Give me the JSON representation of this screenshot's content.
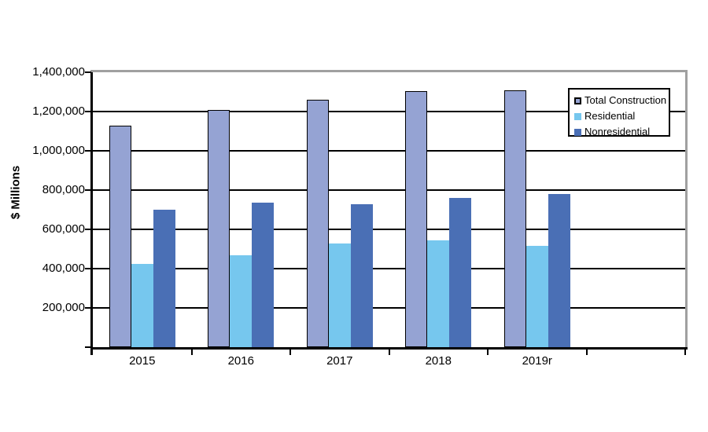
{
  "chart_data": {
    "type": "bar",
    "title": "",
    "ylabel": "$ Millions",
    "xlabel": "",
    "categories": [
      "2015",
      "2016",
      "2017",
      "2018",
      "2019r"
    ],
    "series": [
      {
        "name": "Total Construction",
        "color": "#95A3D3",
        "border_color": "#000000",
        "values": [
          1130000,
          1210000,
          1260000,
          1305000,
          1310000
        ]
      },
      {
        "name": "Residential",
        "color": "#76C7EE",
        "border_color": null,
        "values": [
          425000,
          470000,
          530000,
          545000,
          515000
        ]
      },
      {
        "name": "Nonresidential",
        "color": "#4A6FB5",
        "border_color": null,
        "values": [
          700000,
          735000,
          730000,
          760000,
          780000
        ]
      }
    ],
    "ylim": [
      0,
      1400000
    ],
    "ytick_step": 200000,
    "ytick_labels": [
      "200,000",
      "400,000",
      "600,000",
      "800,000",
      "1,000,000",
      "1,200,000",
      "1,400,000"
    ],
    "grid": true,
    "grid_color": "#000000",
    "plot_border_color": "#A0A0A0",
    "axis_color": "#000000",
    "background_color": "#FFFFFF",
    "legend_position": "top-right",
    "x_slots": 6,
    "x_slots_note": "axis is divided into 6 equal category slots; the 6th slot after 2019r is empty"
  }
}
